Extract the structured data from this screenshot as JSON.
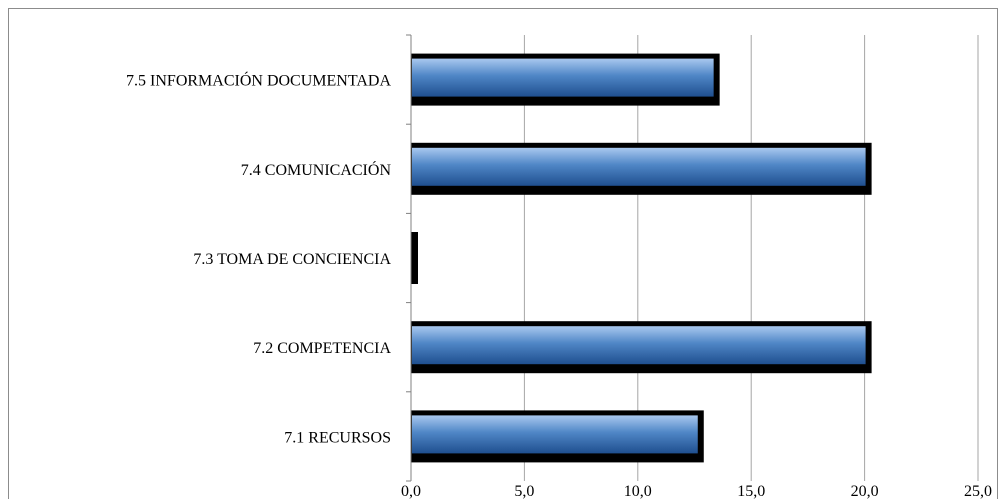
{
  "chart_data": {
    "type": "bar",
    "orientation": "horizontal",
    "categories": [
      "7.1 RECURSOS",
      "7.2 COMPETENCIA",
      "7.3 TOMA DE CONCIENCIA",
      "7.4 COMUNICACIÓN ",
      "7.5 INFORMACIÓN DOCUMENTADA"
    ],
    "values": [
      12.6,
      20.0,
      0.0,
      20.0,
      13.3
    ],
    "xlim": [
      0,
      25
    ],
    "xticks": [
      0,
      5,
      10,
      15,
      20,
      25
    ],
    "xtick_labels": [
      "0,0",
      "5,0",
      "10,0",
      "15,0",
      "20,0",
      "25,0"
    ],
    "grid": "vertical",
    "legend": "none",
    "colors": {
      "bar_fill_top": "#a9c8ef",
      "bar_fill_mid": "#4f86c6",
      "bar_fill_bottom": "#1f4f8f",
      "bar_shadow": "#000000",
      "gridline": "#a6a6a6",
      "axis": "#808080"
    }
  }
}
